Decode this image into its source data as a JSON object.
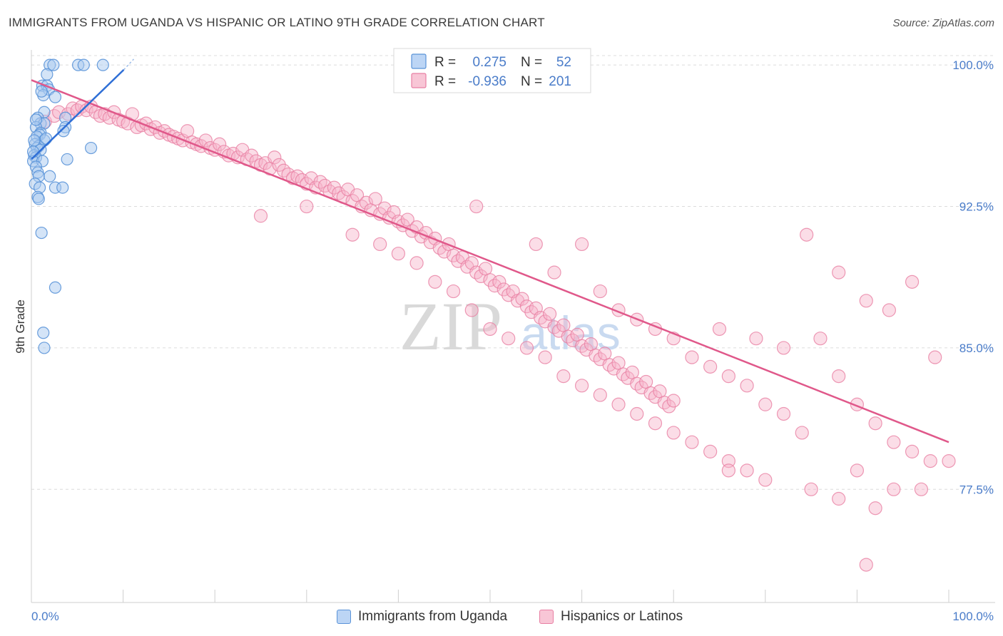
{
  "header": {
    "title": "IMMIGRANTS FROM UGANDA VS HISPANIC OR LATINO 9TH GRADE CORRELATION CHART",
    "source": "Source: ZipAtlas.com"
  },
  "watermark": {
    "zip": "ZIP",
    "atlas": "atlas"
  },
  "colors": {
    "blue_fill": "#a9c9f0",
    "blue_stroke": "#5a93d8",
    "blue_line": "#2f6fd6",
    "pink_fill": "#f6b3c9",
    "pink_stroke": "#e87fa3",
    "pink_line": "#e0588a",
    "grid": "#dcdcdc",
    "axis_text_blue": "#4a7cc9"
  },
  "legend_top": {
    "items": [
      {
        "r_label": "R =",
        "r_value": "0.275",
        "n_label": "N =",
        "n_value": "52",
        "series": "blue"
      },
      {
        "r_label": "R =",
        "r_value": "-0.936",
        "n_label": "N =",
        "n_value": "201",
        "series": "pink"
      }
    ]
  },
  "legend_bottom": {
    "items": [
      {
        "label": "Immigrants from Uganda",
        "series": "blue"
      },
      {
        "label": "Hispanics or Latinos",
        "series": "pink"
      }
    ]
  },
  "chart_data": {
    "type": "scatter",
    "title": "IMMIGRANTS FROM UGANDA VS HISPANIC OR LATINO 9TH GRADE CORRELATION CHART",
    "xlabel": "",
    "ylabel": "9th Grade",
    "xlim": [
      0,
      100
    ],
    "ylim": [
      71.5,
      100.8
    ],
    "x_tick_labels": [
      "0.0%",
      "100.0%"
    ],
    "y_ticks": [
      77.5,
      85.0,
      92.5,
      100.0
    ],
    "y_tick_labels": [
      "77.5%",
      "85.0%",
      "92.5%",
      "100.0%"
    ],
    "grid": true,
    "legend_position": "top-center",
    "series": [
      {
        "name": "Immigrants from Uganda",
        "color": "#a9c9f0",
        "r": 0.275,
        "n": 52,
        "trend": {
          "x": [
            0.0,
            11.0
          ],
          "y": [
            95.0,
            100.2
          ]
        },
        "points": [
          [
            2.0,
            100.0
          ],
          [
            2.4,
            100.0
          ],
          [
            5.1,
            100.0
          ],
          [
            5.7,
            100.0
          ],
          [
            7.8,
            100.0
          ],
          [
            1.7,
            99.5
          ],
          [
            1.2,
            98.9
          ],
          [
            1.7,
            98.9
          ],
          [
            1.9,
            98.7
          ],
          [
            1.3,
            98.4
          ],
          [
            2.6,
            98.3
          ],
          [
            1.4,
            97.5
          ],
          [
            0.7,
            97.2
          ],
          [
            3.7,
            97.2
          ],
          [
            1.0,
            96.9
          ],
          [
            1.4,
            96.9
          ],
          [
            0.5,
            96.7
          ],
          [
            3.7,
            96.7
          ],
          [
            3.5,
            96.5
          ],
          [
            1.0,
            96.4
          ],
          [
            0.9,
            96.3
          ],
          [
            0.6,
            96.2
          ],
          [
            1.4,
            96.0
          ],
          [
            0.4,
            95.8
          ],
          [
            0.8,
            95.7
          ],
          [
            0.6,
            95.6
          ],
          [
            1.0,
            95.5
          ],
          [
            6.5,
            95.6
          ],
          [
            0.3,
            95.2
          ],
          [
            0.5,
            95.1
          ],
          [
            0.2,
            94.9
          ],
          [
            1.2,
            94.9
          ],
          [
            3.9,
            95.0
          ],
          [
            0.5,
            94.6
          ],
          [
            0.7,
            94.3
          ],
          [
            0.8,
            94.1
          ],
          [
            2.0,
            94.1
          ],
          [
            0.4,
            93.7
          ],
          [
            0.9,
            93.5
          ],
          [
            2.6,
            93.5
          ],
          [
            3.4,
            93.5
          ],
          [
            0.7,
            93.0
          ],
          [
            0.8,
            92.9
          ],
          [
            1.1,
            91.1
          ],
          [
            2.6,
            88.2
          ],
          [
            1.3,
            85.8
          ],
          [
            1.4,
            85.0
          ],
          [
            0.3,
            96.0
          ],
          [
            0.2,
            95.4
          ],
          [
            1.6,
            96.1
          ],
          [
            0.5,
            97.1
          ],
          [
            1.1,
            98.6
          ]
        ]
      },
      {
        "name": "Hispanics or Latinos",
        "color": "#f6b3c9",
        "r": -0.936,
        "n": 201,
        "trend": {
          "x": [
            0.0,
            100.0
          ],
          "y": [
            99.2,
            80.0
          ]
        },
        "points": [
          [
            1.5,
            97.0
          ],
          [
            2.5,
            97.3
          ],
          [
            3.0,
            97.5
          ],
          [
            4.0,
            97.4
          ],
          [
            4.5,
            97.7
          ],
          [
            5.0,
            97.6
          ],
          [
            5.5,
            97.8
          ],
          [
            6.0,
            97.6
          ],
          [
            6.5,
            97.8
          ],
          [
            7.0,
            97.5
          ],
          [
            7.5,
            97.3
          ],
          [
            8.0,
            97.4
          ],
          [
            8.5,
            97.2
          ],
          [
            9.0,
            97.5
          ],
          [
            9.5,
            97.1
          ],
          [
            10.0,
            97.0
          ],
          [
            10.5,
            96.9
          ],
          [
            11.0,
            97.4
          ],
          [
            11.5,
            96.7
          ],
          [
            12.0,
            96.8
          ],
          [
            12.5,
            96.9
          ],
          [
            13.0,
            96.6
          ],
          [
            13.5,
            96.7
          ],
          [
            14.0,
            96.4
          ],
          [
            14.5,
            96.5
          ],
          [
            15.0,
            96.3
          ],
          [
            15.5,
            96.2
          ],
          [
            16.0,
            96.1
          ],
          [
            16.5,
            96.0
          ],
          [
            17.0,
            96.5
          ],
          [
            17.5,
            95.9
          ],
          [
            18.0,
            95.8
          ],
          [
            18.5,
            95.7
          ],
          [
            19.0,
            96.0
          ],
          [
            19.5,
            95.6
          ],
          [
            20.0,
            95.5
          ],
          [
            20.5,
            95.8
          ],
          [
            21.0,
            95.4
          ],
          [
            21.5,
            95.2
          ],
          [
            22.0,
            95.3
          ],
          [
            22.5,
            95.1
          ],
          [
            23.0,
            95.5
          ],
          [
            23.5,
            95.0
          ],
          [
            24.0,
            95.2
          ],
          [
            24.5,
            94.9
          ],
          [
            25.0,
            94.7
          ],
          [
            25.5,
            94.8
          ],
          [
            26.0,
            94.5
          ],
          [
            26.5,
            95.1
          ],
          [
            27.0,
            94.7
          ],
          [
            27.5,
            94.4
          ],
          [
            28.0,
            94.2
          ],
          [
            28.5,
            94.0
          ],
          [
            29.0,
            94.1
          ],
          [
            29.5,
            93.9
          ],
          [
            30.0,
            93.7
          ],
          [
            30.5,
            94.0
          ],
          [
            31.0,
            93.5
          ],
          [
            31.5,
            93.8
          ],
          [
            32.0,
            93.6
          ],
          [
            32.5,
            93.3
          ],
          [
            33.0,
            93.5
          ],
          [
            33.5,
            93.2
          ],
          [
            34.0,
            93.0
          ],
          [
            34.5,
            93.4
          ],
          [
            35.0,
            92.8
          ],
          [
            35.5,
            93.1
          ],
          [
            36.0,
            92.5
          ],
          [
            36.5,
            92.7
          ],
          [
            37.0,
            92.3
          ],
          [
            37.5,
            92.9
          ],
          [
            38.0,
            92.1
          ],
          [
            38.5,
            92.4
          ],
          [
            39.0,
            91.9
          ],
          [
            39.5,
            92.2
          ],
          [
            40.0,
            91.7
          ],
          [
            40.5,
            91.5
          ],
          [
            41.0,
            91.8
          ],
          [
            41.5,
            91.2
          ],
          [
            42.0,
            91.4
          ],
          [
            42.5,
            90.9
          ],
          [
            43.0,
            91.1
          ],
          [
            43.5,
            90.6
          ],
          [
            44.0,
            90.8
          ],
          [
            44.5,
            90.3
          ],
          [
            45.0,
            90.1
          ],
          [
            45.5,
            90.5
          ],
          [
            46.0,
            89.9
          ],
          [
            46.5,
            89.6
          ],
          [
            47.0,
            89.8
          ],
          [
            47.5,
            89.3
          ],
          [
            48.0,
            89.5
          ],
          [
            48.5,
            89.0
          ],
          [
            49.0,
            88.8
          ],
          [
            49.5,
            89.2
          ],
          [
            50.0,
            88.6
          ],
          [
            50.5,
            88.3
          ],
          [
            51.0,
            88.5
          ],
          [
            51.5,
            88.1
          ],
          [
            52.0,
            87.8
          ],
          [
            52.5,
            88.0
          ],
          [
            53.0,
            87.5
          ],
          [
            53.5,
            87.6
          ],
          [
            54.0,
            87.2
          ],
          [
            54.5,
            86.9
          ],
          [
            55.0,
            87.1
          ],
          [
            55.5,
            86.6
          ],
          [
            56.0,
            86.4
          ],
          [
            56.5,
            86.8
          ],
          [
            57.0,
            86.1
          ],
          [
            57.5,
            85.9
          ],
          [
            58.0,
            86.2
          ],
          [
            58.5,
            85.6
          ],
          [
            59.0,
            85.4
          ],
          [
            59.5,
            85.7
          ],
          [
            60.0,
            85.1
          ],
          [
            60.5,
            84.9
          ],
          [
            61.0,
            85.2
          ],
          [
            61.5,
            84.6
          ],
          [
            62.0,
            84.4
          ],
          [
            62.5,
            84.7
          ],
          [
            63.0,
            84.1
          ],
          [
            63.5,
            83.9
          ],
          [
            64.0,
            84.2
          ],
          [
            64.5,
            83.6
          ],
          [
            65.0,
            83.4
          ],
          [
            65.5,
            83.7
          ],
          [
            66.0,
            83.1
          ],
          [
            66.5,
            82.9
          ],
          [
            67.0,
            83.2
          ],
          [
            67.5,
            82.6
          ],
          [
            68.0,
            82.4
          ],
          [
            68.5,
            82.7
          ],
          [
            69.0,
            82.1
          ],
          [
            69.5,
            81.9
          ],
          [
            70.0,
            82.2
          ],
          [
            25.0,
            92.0
          ],
          [
            30.0,
            92.5
          ],
          [
            35.0,
            91.0
          ],
          [
            38.0,
            90.5
          ],
          [
            40.0,
            90.0
          ],
          [
            42.0,
            89.5
          ],
          [
            44.0,
            88.5
          ],
          [
            46.0,
            88.0
          ],
          [
            48.0,
            87.0
          ],
          [
            50.0,
            86.0
          ],
          [
            52.0,
            85.5
          ],
          [
            54.0,
            85.0
          ],
          [
            56.0,
            84.5
          ],
          [
            58.0,
            83.5
          ],
          [
            60.0,
            83.0
          ],
          [
            62.0,
            82.5
          ],
          [
            64.0,
            82.0
          ],
          [
            66.0,
            81.5
          ],
          [
            68.0,
            81.0
          ],
          [
            70.0,
            80.5
          ],
          [
            72.0,
            80.0
          ],
          [
            74.0,
            79.5
          ],
          [
            76.0,
            79.0
          ],
          [
            78.0,
            78.5
          ],
          [
            48.5,
            92.5
          ],
          [
            55.0,
            90.5
          ],
          [
            57.0,
            89.0
          ],
          [
            60.0,
            90.5
          ],
          [
            62.0,
            88.0
          ],
          [
            64.0,
            87.0
          ],
          [
            66.0,
            86.5
          ],
          [
            68.0,
            86.0
          ],
          [
            70.0,
            85.5
          ],
          [
            72.0,
            84.5
          ],
          [
            74.0,
            84.0
          ],
          [
            76.0,
            83.5
          ],
          [
            78.0,
            83.0
          ],
          [
            80.0,
            82.0
          ],
          [
            82.0,
            81.5
          ],
          [
            84.0,
            80.5
          ],
          [
            84.5,
            91.0
          ],
          [
            88.0,
            89.0
          ],
          [
            91.0,
            87.5
          ],
          [
            93.5,
            87.0
          ],
          [
            96.0,
            88.5
          ],
          [
            98.5,
            84.5
          ],
          [
            75.0,
            86.0
          ],
          [
            79.0,
            85.5
          ],
          [
            82.0,
            85.0
          ],
          [
            86.0,
            85.5
          ],
          [
            88.0,
            83.5
          ],
          [
            90.0,
            82.0
          ],
          [
            92.0,
            81.0
          ],
          [
            94.0,
            80.0
          ],
          [
            96.0,
            79.5
          ],
          [
            98.0,
            79.0
          ],
          [
            76.0,
            78.5
          ],
          [
            80.0,
            78.0
          ],
          [
            85.0,
            77.5
          ],
          [
            88.0,
            77.0
          ],
          [
            90.0,
            78.5
          ],
          [
            92.0,
            76.5
          ],
          [
            94.0,
            77.5
          ],
          [
            97.0,
            77.5
          ],
          [
            91.0,
            73.5
          ],
          [
            100.0,
            79.0
          ]
        ]
      }
    ]
  }
}
